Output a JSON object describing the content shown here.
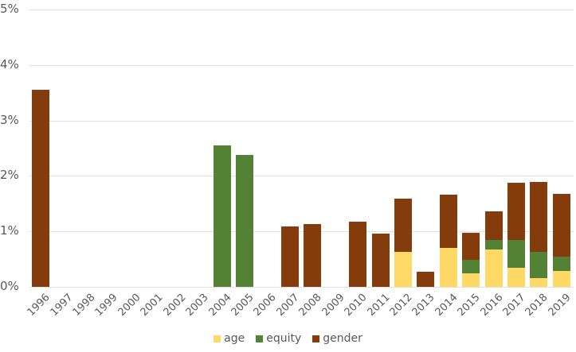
{
  "chart_data": {
    "type": "bar",
    "stacked": true,
    "title": "",
    "xlabel": "",
    "ylabel": "",
    "ylim": [
      0,
      5
    ],
    "y_ticks": [
      "0%",
      "1%",
      "2%",
      "3%",
      "4%",
      "5%"
    ],
    "grid": true,
    "legend_position": "bottom",
    "categories": [
      "1996",
      "1997",
      "1998",
      "1999",
      "2000",
      "2001",
      "2002",
      "2003",
      "2004",
      "2005",
      "2006",
      "2007",
      "2008",
      "2009",
      "2010",
      "2011",
      "2012",
      "2013",
      "2014",
      "2015",
      "2016",
      "2017",
      "2018",
      "2019"
    ],
    "series": [
      {
        "name": "age",
        "color": "#FFD966",
        "values": [
          0,
          0,
          0,
          0,
          0,
          0,
          0,
          0,
          0,
          0,
          0,
          0,
          0,
          0,
          0,
          0,
          0.63,
          0,
          0.7,
          0.24,
          0.67,
          0.34,
          0.16,
          0.28
        ]
      },
      {
        "name": "equity",
        "color": "#548235",
        "values": [
          0,
          0,
          0,
          0,
          0,
          0,
          0,
          0,
          2.55,
          2.38,
          0,
          0,
          0,
          0,
          0,
          0,
          0,
          0,
          0,
          0.24,
          0.18,
          0.51,
          0.47,
          0.27
        ]
      },
      {
        "name": "gender",
        "color": "#843C0C",
        "values": [
          3.55,
          0,
          0,
          0,
          0,
          0,
          0,
          0,
          0,
          0,
          0,
          1.09,
          1.13,
          0,
          1.17,
          0.96,
          0.96,
          0.27,
          0.96,
          0.49,
          0.51,
          1.03,
          1.26,
          1.12
        ]
      }
    ]
  },
  "legend": {
    "items": [
      {
        "label": "age",
        "color": "#FFD966"
      },
      {
        "label": "equity",
        "color": "#548235"
      },
      {
        "label": "gender",
        "color": "#843C0C"
      }
    ]
  }
}
